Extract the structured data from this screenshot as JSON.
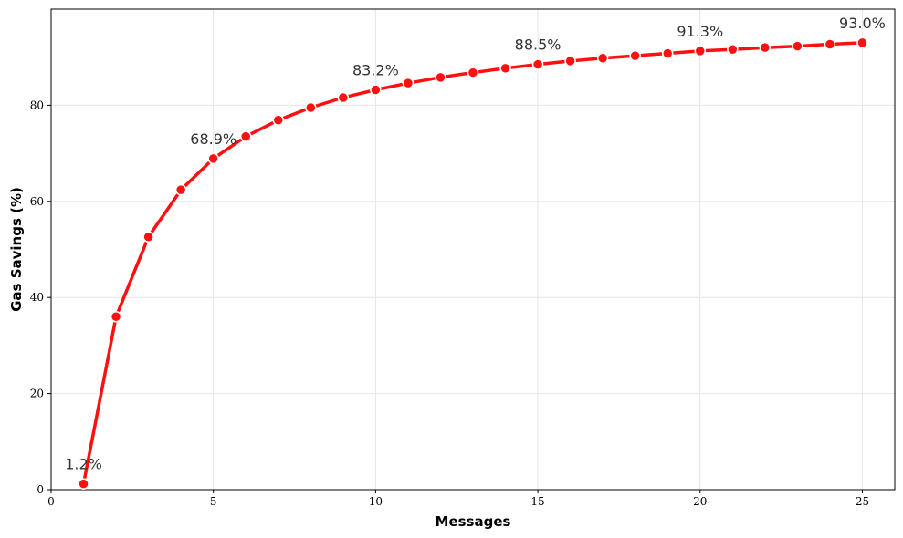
{
  "chart_data": {
    "type": "line",
    "title": "",
    "xlabel": "Messages",
    "ylabel": "Gas Savings (%)",
    "xlim": [
      0,
      26
    ],
    "ylim": [
      0,
      100
    ],
    "xticks": [
      0,
      5,
      10,
      15,
      20,
      25
    ],
    "yticks": [
      0,
      20,
      40,
      60,
      80
    ],
    "grid": true,
    "line_color": "#ff1010",
    "series": [
      {
        "x": [
          1,
          2,
          3,
          4,
          5,
          6,
          7,
          8,
          9,
          10,
          11,
          12,
          13,
          14,
          15,
          16,
          17,
          18,
          19,
          20,
          21,
          22,
          23,
          24,
          25
        ],
        "values": [
          1.2,
          36.0,
          52.6,
          62.4,
          68.9,
          73.5,
          76.9,
          79.5,
          81.6,
          83.2,
          84.6,
          85.8,
          86.8,
          87.7,
          88.5,
          89.2,
          89.8,
          90.3,
          90.8,
          91.3,
          91.6,
          92.0,
          92.3,
          92.7,
          93.0
        ]
      }
    ],
    "annotations": [
      {
        "x": 1,
        "y": 1.2,
        "text": "1.2%"
      },
      {
        "x": 5,
        "y": 68.9,
        "text": "68.9%"
      },
      {
        "x": 10,
        "y": 83.2,
        "text": "83.2%"
      },
      {
        "x": 15,
        "y": 88.5,
        "text": "88.5%"
      },
      {
        "x": 20,
        "y": 91.3,
        "text": "91.3%"
      },
      {
        "x": 25,
        "y": 93.0,
        "text": "93.0%"
      }
    ]
  }
}
